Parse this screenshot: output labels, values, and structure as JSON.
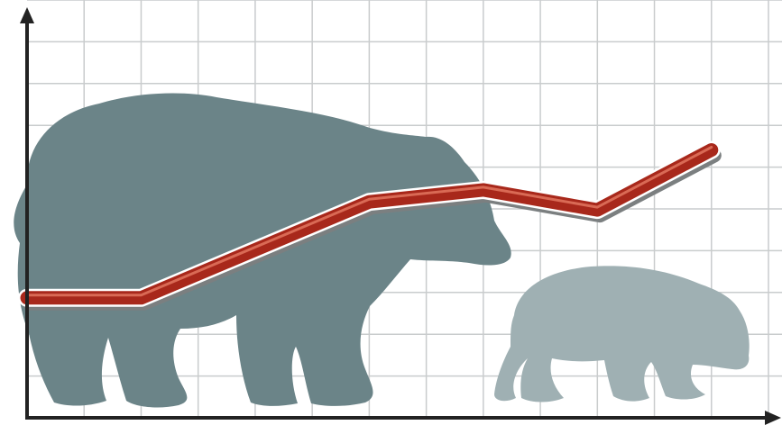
{
  "chart_data": {
    "type": "line",
    "title": "",
    "xlabel": "",
    "ylabel": "",
    "x": [
      0,
      1,
      2,
      3,
      4,
      5,
      6
    ],
    "series": [
      {
        "values": [
          30,
          30,
          42,
          54,
          57,
          52,
          67
        ]
      }
    ],
    "xlim": [
      0,
      6.5
    ],
    "ylim": [
      0,
      100
    ],
    "grid": true,
    "legend": "none",
    "colors": {
      "line": "#a8281b",
      "line_highlight": "#d96a55",
      "line_shadow": "#7b7f80",
      "grid": "#c9cccd",
      "axes": "#222222",
      "large_bear": "#6b8488",
      "small_bear": "#9fb0b3"
    },
    "decoration": {
      "background_icons": [
        "large-bear-silhouette",
        "small-bear-silhouette"
      ]
    }
  }
}
